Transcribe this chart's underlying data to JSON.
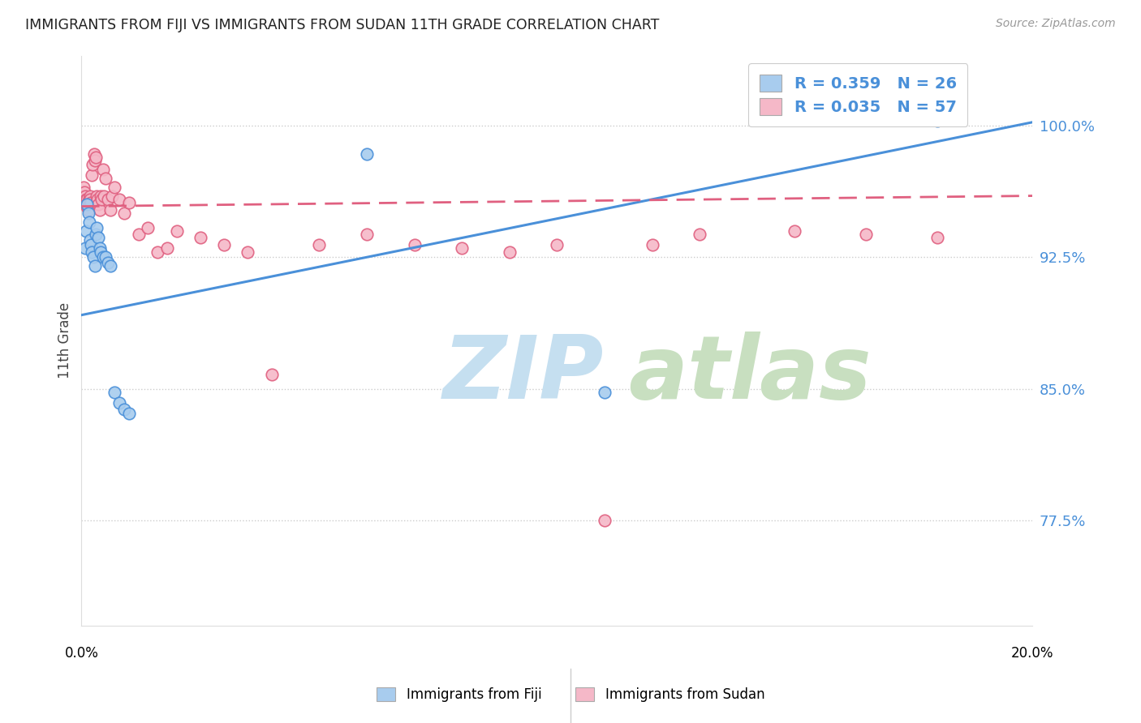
{
  "title": "IMMIGRANTS FROM FIJI VS IMMIGRANTS FROM SUDAN 11TH GRADE CORRELATION CHART",
  "source": "Source: ZipAtlas.com",
  "ylabel": "11th Grade",
  "yticks": [
    0.775,
    0.85,
    0.925,
    1.0
  ],
  "ytick_labels": [
    "77.5%",
    "85.0%",
    "92.5%",
    "100.0%"
  ],
  "xlim": [
    0.0,
    0.2
  ],
  "ylim": [
    0.715,
    1.04
  ],
  "fiji_R": 0.359,
  "fiji_N": 26,
  "sudan_R": 0.035,
  "sudan_N": 57,
  "fiji_color": "#a8ccee",
  "sudan_color": "#f5b8c8",
  "fiji_line_color": "#4a90d9",
  "sudan_line_color": "#e06080",
  "watermark_zip": "ZIP",
  "watermark_atlas": "atlas",
  "watermark_color_zip": "#c8dff0",
  "watermark_color_atlas": "#d8e8c0",
  "fiji_x": [
    0.0008,
    0.001,
    0.0012,
    0.0014,
    0.0016,
    0.0018,
    0.002,
    0.0022,
    0.0025,
    0.0028,
    0.003,
    0.0032,
    0.0035,
    0.0038,
    0.004,
    0.0045,
    0.005,
    0.0055,
    0.006,
    0.007,
    0.008,
    0.009,
    0.01,
    0.06,
    0.11,
    0.18
  ],
  "fiji_y": [
    0.93,
    0.94,
    0.955,
    0.95,
    0.945,
    0.935,
    0.932,
    0.928,
    0.925,
    0.92,
    0.938,
    0.942,
    0.936,
    0.93,
    0.928,
    0.925,
    0.925,
    0.922,
    0.92,
    0.848,
    0.842,
    0.838,
    0.836,
    0.984,
    0.848,
    1.003
  ],
  "sudan_x": [
    0.0005,
    0.0007,
    0.0008,
    0.0009,
    0.001,
    0.0011,
    0.0012,
    0.0013,
    0.0014,
    0.0015,
    0.0016,
    0.0017,
    0.0018,
    0.0019,
    0.002,
    0.0022,
    0.0024,
    0.0026,
    0.0028,
    0.003,
    0.0032,
    0.0034,
    0.0036,
    0.0038,
    0.004,
    0.0042,
    0.0045,
    0.0048,
    0.005,
    0.0055,
    0.006,
    0.0065,
    0.007,
    0.008,
    0.009,
    0.01,
    0.012,
    0.014,
    0.016,
    0.018,
    0.02,
    0.025,
    0.03,
    0.035,
    0.04,
    0.05,
    0.06,
    0.07,
    0.08,
    0.09,
    0.1,
    0.11,
    0.12,
    0.13,
    0.15,
    0.165,
    0.18
  ],
  "sudan_y": [
    0.965,
    0.962,
    0.96,
    0.958,
    0.956,
    0.954,
    0.958,
    0.956,
    0.954,
    0.952,
    0.958,
    0.956,
    0.96,
    0.958,
    0.956,
    0.972,
    0.978,
    0.984,
    0.98,
    0.982,
    0.96,
    0.958,
    0.955,
    0.952,
    0.96,
    0.958,
    0.975,
    0.96,
    0.97,
    0.958,
    0.952,
    0.96,
    0.965,
    0.958,
    0.95,
    0.956,
    0.938,
    0.942,
    0.928,
    0.93,
    0.94,
    0.936,
    0.932,
    0.928,
    0.858,
    0.932,
    0.938,
    0.932,
    0.93,
    0.928,
    0.932,
    0.775,
    0.932,
    0.938,
    0.94,
    0.938,
    0.936
  ],
  "fiji_line_x": [
    0.0,
    0.2
  ],
  "fiji_line_y": [
    0.892,
    1.002
  ],
  "sudan_line_x": [
    0.0,
    0.2
  ],
  "sudan_line_y": [
    0.954,
    0.96
  ]
}
